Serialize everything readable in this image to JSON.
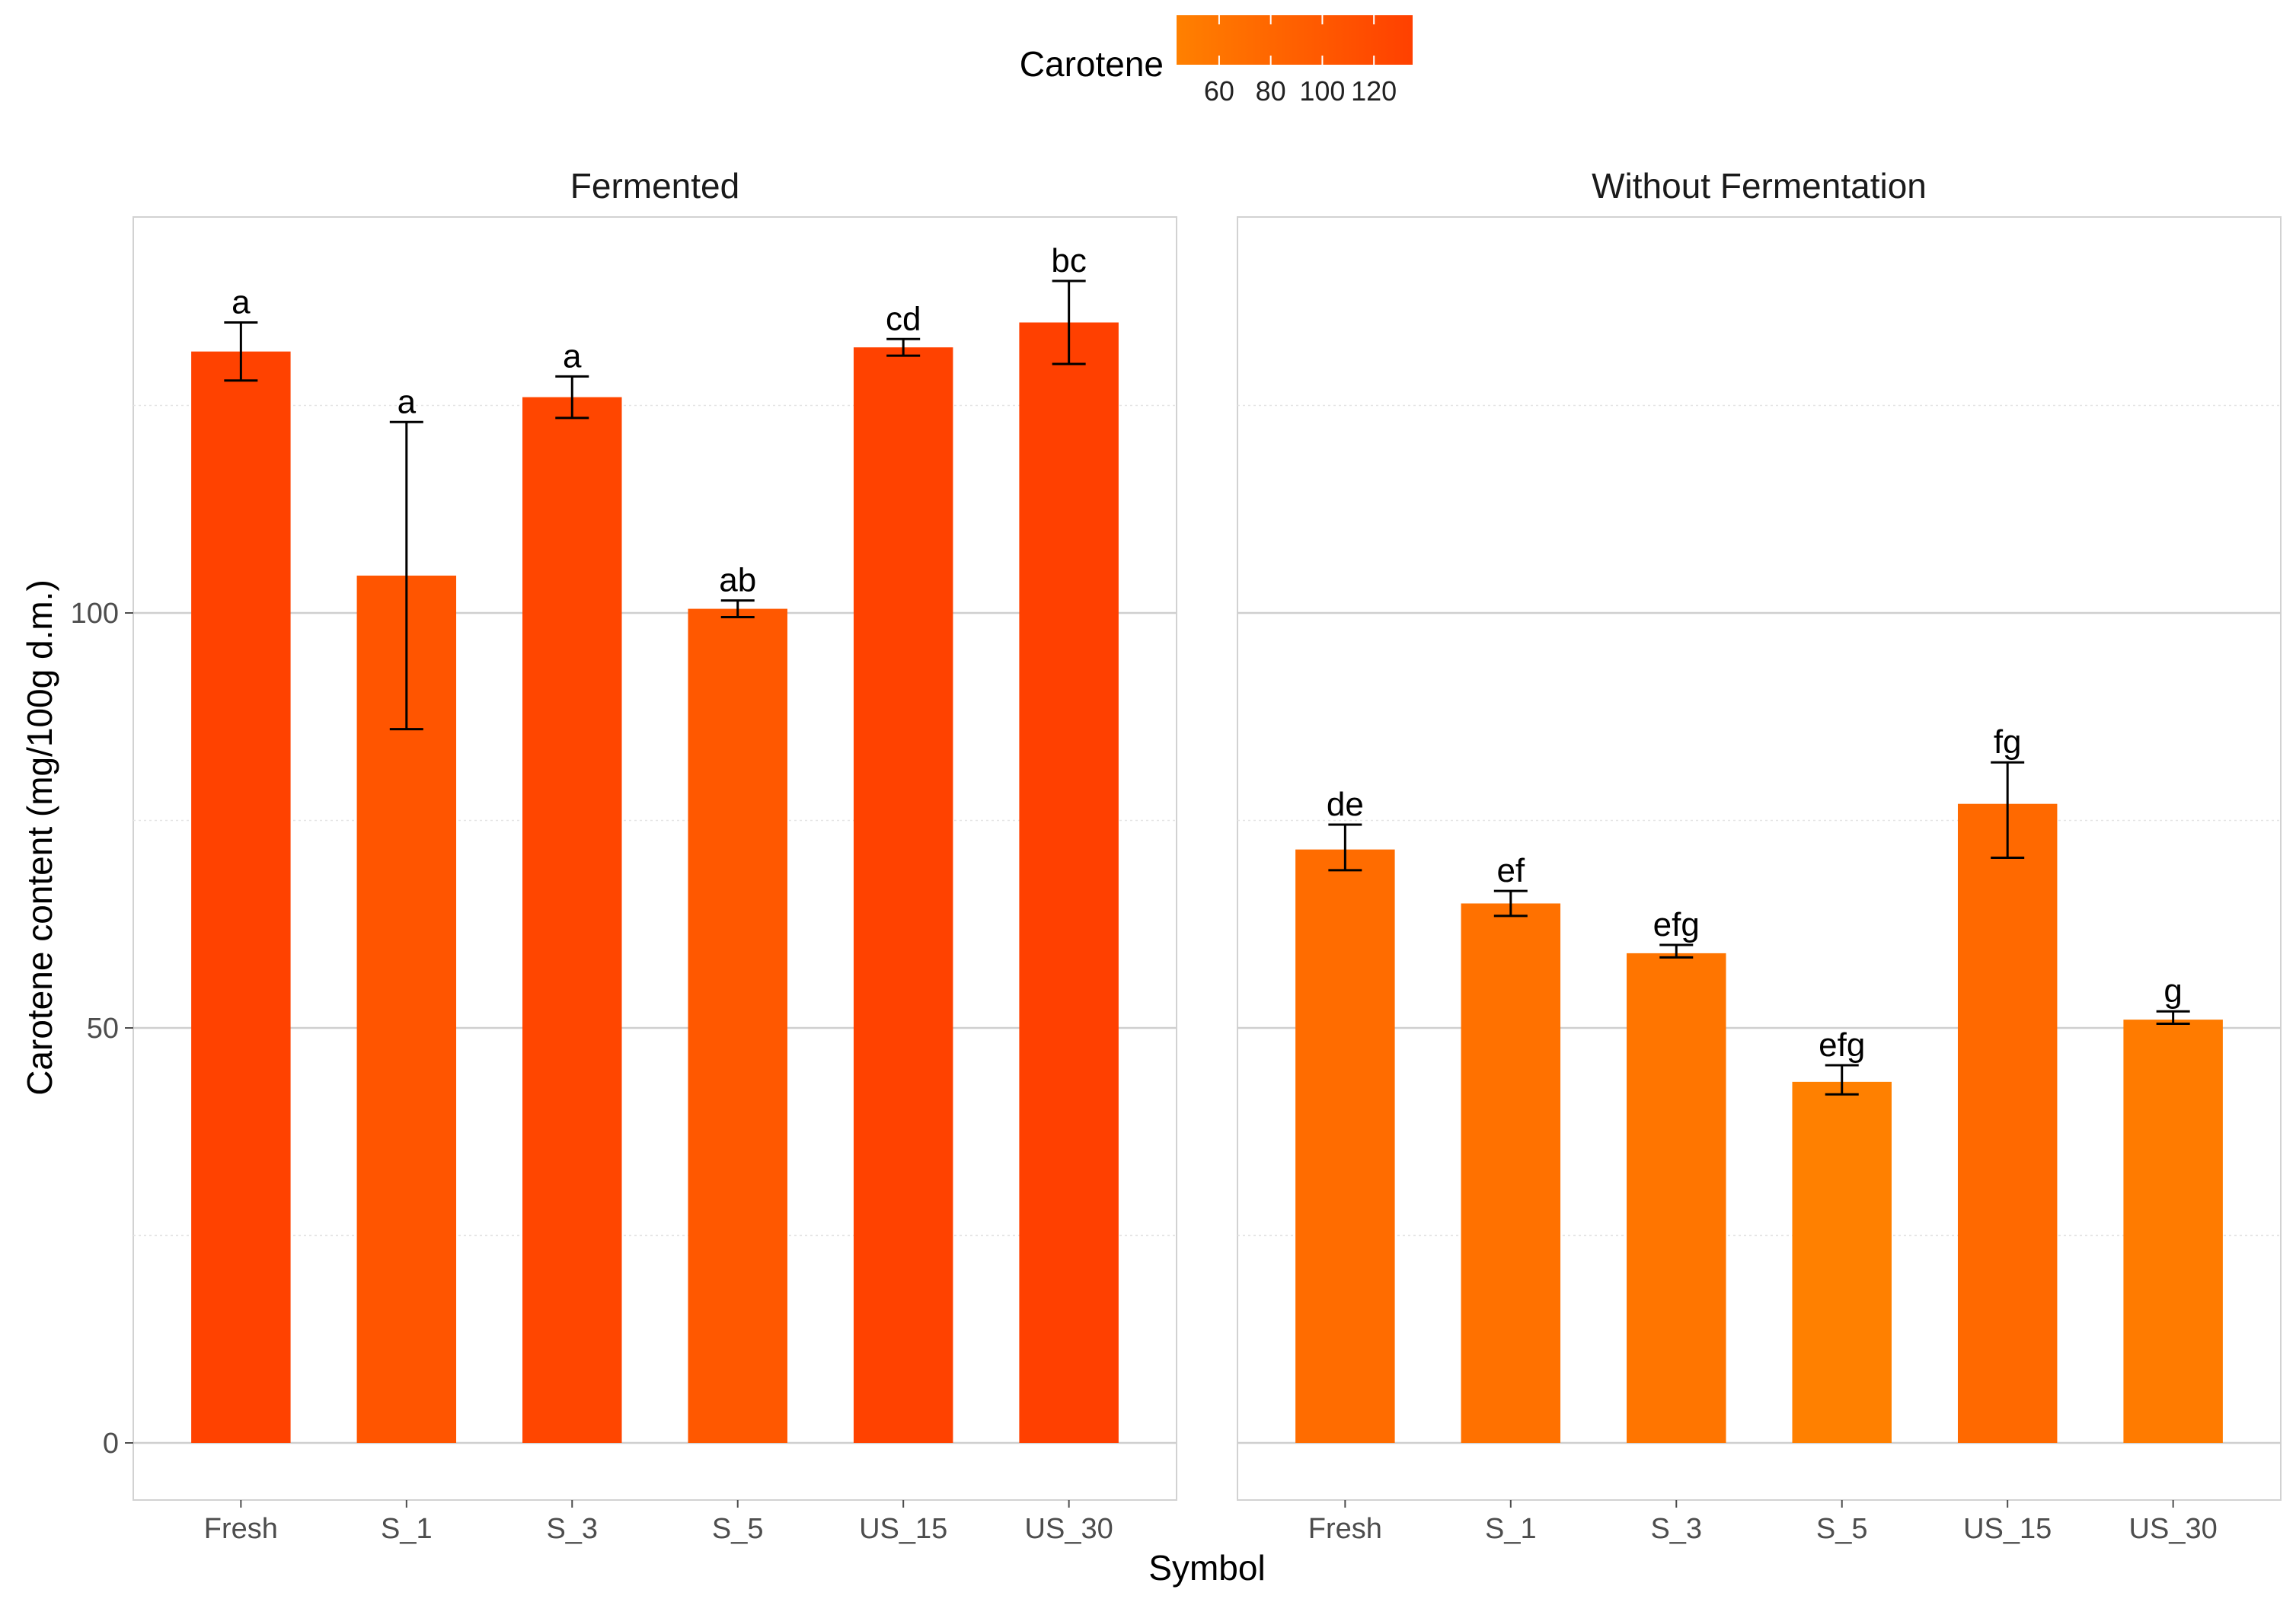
{
  "chart_data": {
    "type": "bar",
    "xlabel": "Symbol",
    "ylabel": "Carotene content (mg/100g d.m.)",
    "ylim": [
      -7,
      148
    ],
    "yticks": [
      0,
      50,
      100
    ],
    "legend": {
      "title": "Carotene",
      "ticks": [
        60,
        80,
        100,
        120
      ],
      "range": [
        43.5,
        135
      ],
      "color_low": "#ff8000",
      "color_high": "#ff4000",
      "placement": "top"
    },
    "categories": [
      "Fresh",
      "S_1",
      "S_3",
      "S_5",
      "US_15",
      "US_30"
    ],
    "facets": [
      {
        "name": "Fermented",
        "values": [
          131.5,
          104.5,
          126,
          100.5,
          132,
          135
        ],
        "error_low": [
          128,
          86,
          123.5,
          99.5,
          131,
          130
        ],
        "error_high": [
          135,
          123,
          128.5,
          101.5,
          133,
          140
        ],
        "labels": [
          "a",
          "a",
          "a",
          "ab",
          "cd",
          "bc"
        ]
      },
      {
        "name": "Without Fermentation",
        "values": [
          71.5,
          65,
          59,
          43.5,
          77,
          51
        ],
        "error_low": [
          69,
          63.5,
          58.5,
          42,
          70.5,
          50.5
        ],
        "error_high": [
          74.5,
          66.5,
          60,
          45.5,
          82,
          52
        ],
        "labels": [
          "de",
          "ef",
          "efg",
          "efg",
          "fg",
          "g"
        ]
      }
    ]
  }
}
